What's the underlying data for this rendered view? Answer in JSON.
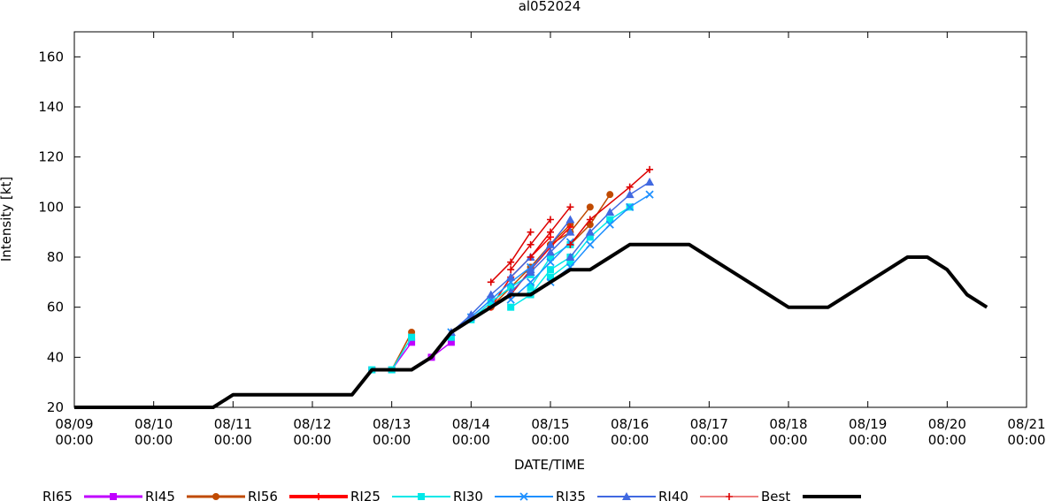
{
  "chart_data": {
    "type": "line",
    "title": "al052024",
    "xlabel": "DATE/TIME",
    "ylabel": "Intensity [kt]",
    "xlim": [
      0,
      12
    ],
    "ylim": [
      20,
      170
    ],
    "grid": false,
    "legend_position": "bottom",
    "x_ticks": [
      {
        "value": 0,
        "date": "08/09",
        "time": "00:00"
      },
      {
        "value": 1,
        "date": "08/10",
        "time": "00:00"
      },
      {
        "value": 2,
        "date": "08/11",
        "time": "00:00"
      },
      {
        "value": 3,
        "date": "08/12",
        "time": "00:00"
      },
      {
        "value": 4,
        "date": "08/13",
        "time": "00:00"
      },
      {
        "value": 5,
        "date": "08/14",
        "time": "00:00"
      },
      {
        "value": 6,
        "date": "08/15",
        "time": "00:00"
      },
      {
        "value": 7,
        "date": "08/16",
        "time": "00:00"
      },
      {
        "value": 8,
        "date": "08/17",
        "time": "00:00"
      },
      {
        "value": 9,
        "date": "08/18",
        "time": "00:00"
      },
      {
        "value": 10,
        "date": "08/19",
        "time": "00:00"
      },
      {
        "value": 11,
        "date": "08/20",
        "time": "00:00"
      },
      {
        "value": 12,
        "date": "08/21",
        "time": "00:00"
      }
    ],
    "y_ticks": [
      {
        "value": 20,
        "label": "20"
      },
      {
        "value": 40,
        "label": "40"
      },
      {
        "value": 60,
        "label": "60"
      },
      {
        "value": 80,
        "label": "80"
      },
      {
        "value": 100,
        "label": "100"
      },
      {
        "value": 120,
        "label": "120"
      },
      {
        "value": 140,
        "label": "140"
      },
      {
        "value": 160,
        "label": "160"
      }
    ],
    "series": [
      {
        "name": "RI65",
        "color": "#c000ff",
        "marker": "square",
        "legend_width": 3,
        "runs": [
          [
            [
              3.75,
              35
            ],
            [
              4,
              35
            ],
            [
              4.25,
              46
            ]
          ],
          [
            [
              4.5,
              40
            ],
            [
              4.75,
              46
            ]
          ]
        ]
      },
      {
        "name": "RI45",
        "color": "#c04a00",
        "marker": "circle",
        "legend_width": 3,
        "runs": [
          [
            [
              3.75,
              35
            ],
            [
              4,
              35
            ],
            [
              4.25,
              50
            ]
          ],
          [
            [
              5.25,
              60
            ],
            [
              5.5,
              68
            ],
            [
              5.75,
              76
            ],
            [
              6,
              85
            ],
            [
              6.25,
              93
            ]
          ],
          [
            [
              6,
              85
            ],
            [
              6.25,
              90
            ],
            [
              6.5,
              100
            ]
          ],
          [
            [
              6.25,
              85
            ],
            [
              6.5,
              93
            ],
            [
              6.75,
              105
            ]
          ]
        ]
      },
      {
        "name": "RI56",
        "color": "#ff0000",
        "marker": "plus",
        "legend_width": 4,
        "runs": [
          [
            [
              5.25,
              60
            ],
            [
              5.5,
              72
            ],
            [
              5.75,
              80
            ],
            [
              6,
              88
            ]
          ],
          [
            [
              5.5,
              65
            ],
            [
              5.75,
              75
            ],
            [
              6,
              84
            ],
            [
              6.25,
              92
            ]
          ]
        ]
      },
      {
        "name": "RI25",
        "color": "#00e8e8",
        "marker": "square",
        "legend_width": 2,
        "runs": [
          [
            [
              3.75,
              35
            ],
            [
              4,
              35
            ],
            [
              4.25,
              48
            ]
          ],
          [
            [
              4.75,
              48
            ]
          ],
          [
            [
              5,
              55
            ],
            [
              5.25,
              62
            ],
            [
              5.5,
              68
            ],
            [
              5.75,
              73
            ]
          ],
          [
            [
              5.5,
              60
            ],
            [
              5.75,
              65
            ],
            [
              6,
              75
            ],
            [
              6.25,
              80
            ]
          ],
          [
            [
              5.75,
              68
            ],
            [
              6,
              80
            ],
            [
              6.25,
              85
            ]
          ],
          [
            [
              6,
              72
            ],
            [
              6.25,
              78
            ],
            [
              6.5,
              88
            ],
            [
              6.75,
              95
            ],
            [
              7,
              100
            ]
          ]
        ]
      },
      {
        "name": "RI30",
        "color": "#1e90ff",
        "marker": "x",
        "legend_width": 2,
        "runs": [
          [
            [
              4.75,
              50
            ],
            [
              5,
              56
            ],
            [
              5.25,
              63
            ],
            [
              5.5,
              70
            ],
            [
              5.75,
              76
            ]
          ],
          [
            [
              5.5,
              63
            ],
            [
              5.75,
              70
            ],
            [
              6,
              78
            ],
            [
              6.25,
              86
            ]
          ],
          [
            [
              6,
              70
            ],
            [
              6.25,
              76
            ],
            [
              6.5,
              85
            ],
            [
              6.75,
              93
            ],
            [
              7,
              100
            ],
            [
              7.25,
              105
            ]
          ]
        ]
      },
      {
        "name": "RI35",
        "color": "#4169e1",
        "marker": "triangle",
        "legend_width": 2,
        "runs": [
          [
            [
              4.75,
              50
            ],
            [
              5,
              57
            ],
            [
              5.25,
              65
            ],
            [
              5.5,
              72
            ],
            [
              5.75,
              80
            ]
          ],
          [
            [
              5.5,
              66
            ],
            [
              5.75,
              74
            ],
            [
              6,
              82
            ],
            [
              6.25,
              90
            ]
          ],
          [
            [
              5.75,
              75
            ],
            [
              6,
              85
            ],
            [
              6.25,
              95
            ]
          ],
          [
            [
              6.25,
              80
            ],
            [
              6.5,
              90
            ],
            [
              6.75,
              98
            ],
            [
              7,
              105
            ],
            [
              7.25,
              110
            ]
          ]
        ]
      },
      {
        "name": "RI40",
        "color": "#dd0000",
        "marker": "plus",
        "legend_width": 1,
        "runs": [
          [
            [
              5.25,
              70
            ],
            [
              5.5,
              78
            ],
            [
              5.75,
              90
            ]
          ],
          [
            [
              5.5,
              75
            ],
            [
              5.75,
              85
            ],
            [
              6,
              95
            ]
          ],
          [
            [
              5.75,
              80
            ],
            [
              6,
              90
            ],
            [
              6.25,
              100
            ]
          ],
          [
            [
              6.25,
              85
            ],
            [
              6.5,
              95
            ],
            [
              7,
              108
            ],
            [
              7.25,
              115
            ]
          ]
        ]
      },
      {
        "name": "Best",
        "color": "#000000",
        "marker": "none",
        "legend_width": 4,
        "runs": [
          [
            [
              0,
              20
            ],
            [
              1,
              20
            ],
            [
              1.75,
              20
            ],
            [
              2,
              25
            ],
            [
              3,
              25
            ],
            [
              3.5,
              25
            ],
            [
              3.75,
              35
            ],
            [
              4.25,
              35
            ],
            [
              4.5,
              40
            ],
            [
              4.75,
              50
            ],
            [
              5,
              55
            ],
            [
              5.25,
              60
            ],
            [
              5.5,
              65
            ],
            [
              5.75,
              65
            ],
            [
              6,
              70
            ],
            [
              6.25,
              75
            ],
            [
              6.5,
              75
            ],
            [
              6.75,
              80
            ],
            [
              7,
              85
            ],
            [
              7.5,
              85
            ],
            [
              7.75,
              85
            ],
            [
              8,
              80
            ],
            [
              8.25,
              75
            ],
            [
              8.5,
              70
            ],
            [
              8.75,
              65
            ],
            [
              9,
              60
            ],
            [
              9.5,
              60
            ],
            [
              9.75,
              65
            ],
            [
              10,
              70
            ],
            [
              10.25,
              75
            ],
            [
              10.5,
              80
            ],
            [
              10.75,
              80
            ],
            [
              11,
              75
            ],
            [
              11.25,
              65
            ],
            [
              11.5,
              60
            ]
          ]
        ]
      }
    ]
  }
}
